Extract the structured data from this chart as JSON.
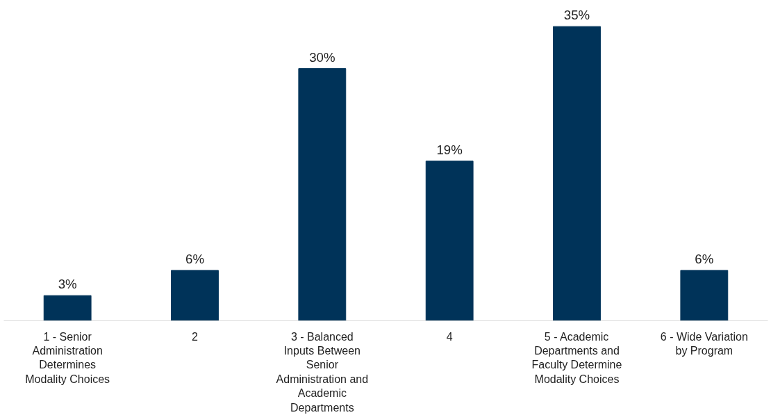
{
  "chart_data": {
    "type": "bar",
    "categories": [
      "1 - Senior Administration Determines Modality Choices",
      "2",
      "3 - Balanced Inputs Between Senior Administration and Academic Departments",
      "4",
      "5 - Academic Departments and Faculty Determine Modality Choices",
      "6 - Wide Variation by Program"
    ],
    "values": [
      3,
      6,
      30,
      19,
      35,
      6
    ],
    "value_labels": [
      "3%",
      "6%",
      "30%",
      "19%",
      "35%",
      "6%"
    ],
    "color": "#003359",
    "grid": false
  }
}
